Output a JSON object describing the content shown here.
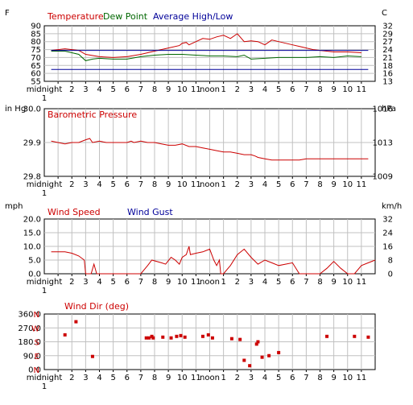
{
  "x_ticks": [
    "midnight",
    "2",
    "3",
    "4",
    "5",
    "6",
    "7",
    "8",
    "9",
    "10",
    "11",
    "noon",
    "1",
    "2",
    "3",
    "4",
    "5",
    "6",
    "7",
    "8",
    "9",
    "10",
    "11"
  ],
  "x_sub": "1",
  "colors": {
    "red": "#cc0000",
    "green": "#006600",
    "blue": "#000099",
    "grid": "#c0c0c0",
    "bg": "#ffffff"
  },
  "chart_data": [
    {
      "type": "line",
      "left_unit": "F",
      "right_unit": "C",
      "ylim": [
        55,
        90
      ],
      "left_ticks": [
        "90",
        "85",
        "80",
        "75",
        "70",
        "65",
        "60",
        "55"
      ],
      "right_ticks": [
        "32",
        "29",
        "27",
        "24",
        "21",
        "18",
        "16",
        "13"
      ],
      "legend": [
        "Temperature",
        "Dew Point",
        "Average High/Low"
      ],
      "series": [
        {
          "name": "Temperature",
          "color": "#cc0000",
          "points": [
            [
              0.5,
              74.5
            ],
            [
              1.5,
              75.5
            ],
            [
              2.5,
              74.5
            ],
            [
              3,
              72
            ],
            [
              4,
              70.5
            ],
            [
              5,
              70
            ],
            [
              6,
              70.5
            ],
            [
              7,
              72
            ],
            [
              8,
              74
            ],
            [
              9,
              76
            ],
            [
              9.8,
              77.5
            ],
            [
              10,
              79
            ],
            [
              10.3,
              79.5
            ],
            [
              10.5,
              78
            ],
            [
              11,
              80
            ],
            [
              11.5,
              82
            ],
            [
              12,
              81.5
            ],
            [
              12.5,
              83
            ],
            [
              13,
              84
            ],
            [
              13.5,
              82
            ],
            [
              14,
              85
            ],
            [
              14.5,
              80
            ],
            [
              15,
              80.5
            ],
            [
              15.5,
              80
            ],
            [
              16,
              78
            ],
            [
              16.5,
              81
            ],
            [
              17,
              80
            ],
            [
              17.5,
              79
            ],
            [
              18,
              78
            ],
            [
              18.5,
              77
            ],
            [
              19,
              76
            ],
            [
              19.5,
              75
            ],
            [
              20,
              74.5
            ],
            [
              21,
              73.5
            ],
            [
              22,
              73.5
            ],
            [
              23,
              73
            ]
          ]
        },
        {
          "name": "Dew Point",
          "color": "#006600",
          "points": [
            [
              0.5,
              74
            ],
            [
              1.5,
              74
            ],
            [
              2.5,
              72
            ],
            [
              3,
              68
            ],
            [
              3.5,
              69
            ],
            [
              4,
              69.5
            ],
            [
              5,
              69
            ],
            [
              6,
              69
            ],
            [
              7,
              70.5
            ],
            [
              8,
              71.5
            ],
            [
              9,
              72
            ],
            [
              10,
              72
            ],
            [
              11,
              71.5
            ],
            [
              12,
              71
            ],
            [
              13,
              71
            ],
            [
              14,
              70.5
            ],
            [
              14.5,
              71.5
            ],
            [
              15,
              69
            ],
            [
              16,
              69.5
            ],
            [
              17,
              70
            ],
            [
              18,
              70
            ],
            [
              19,
              70
            ],
            [
              20,
              70.5
            ],
            [
              21,
              70
            ],
            [
              22,
              71
            ],
            [
              23,
              70.5
            ]
          ]
        },
        {
          "name": "Average High",
          "color": "#000099",
          "points": [
            [
              0.5,
              74.5
            ],
            [
              23.5,
              74.5
            ]
          ]
        },
        {
          "name": "Average Low",
          "color": "#000099",
          "points": [
            [
              0.5,
              62.5
            ],
            [
              23.5,
              62.5
            ]
          ]
        }
      ]
    },
    {
      "type": "line",
      "title": "Barometric Pressure",
      "left_unit": "in Hg",
      "right_unit": "hPa",
      "ylim": [
        29.8,
        30.05
      ],
      "left_ticks": [
        "30.0",
        "29.9",
        "29.8"
      ],
      "right_ticks": [
        "1016",
        "1013",
        "1009"
      ],
      "series": [
        {
          "name": "Barometric Pressure",
          "color": "#cc0000",
          "points": [
            [
              0.5,
              29.93
            ],
            [
              1,
              29.925
            ],
            [
              1.5,
              29.92
            ],
            [
              2,
              29.925
            ],
            [
              2.5,
              29.925
            ],
            [
              3,
              29.935
            ],
            [
              3.3,
              29.94
            ],
            [
              3.5,
              29.925
            ],
            [
              4,
              29.93
            ],
            [
              4.5,
              29.925
            ],
            [
              5,
              29.925
            ],
            [
              5.5,
              29.925
            ],
            [
              6,
              29.925
            ],
            [
              6.3,
              29.93
            ],
            [
              6.5,
              29.925
            ],
            [
              7,
              29.93
            ],
            [
              7.5,
              29.925
            ],
            [
              8,
              29.925
            ],
            [
              8.5,
              29.92
            ],
            [
              9,
              29.915
            ],
            [
              9.5,
              29.915
            ],
            [
              10,
              29.92
            ],
            [
              10.5,
              29.91
            ],
            [
              11,
              29.91
            ],
            [
              11.5,
              29.905
            ],
            [
              12,
              29.9
            ],
            [
              12.5,
              29.895
            ],
            [
              13,
              29.89
            ],
            [
              13.5,
              29.89
            ],
            [
              14,
              29.885
            ],
            [
              14.5,
              29.88
            ],
            [
              15,
              29.88
            ],
            [
              15.3,
              29.875
            ],
            [
              15.5,
              29.87
            ],
            [
              16,
              29.865
            ],
            [
              16.5,
              29.86
            ],
            [
              17,
              29.86
            ],
            [
              17.5,
              29.86
            ],
            [
              18,
              29.86
            ],
            [
              18.5,
              29.86
            ],
            [
              19,
              29.865
            ],
            [
              19.5,
              29.865
            ],
            [
              20,
              29.865
            ],
            [
              20.5,
              29.865
            ],
            [
              21,
              29.865
            ],
            [
              22,
              29.865
            ],
            [
              23,
              29.865
            ],
            [
              23.5,
              29.865
            ]
          ]
        }
      ]
    },
    {
      "type": "line",
      "left_unit": "mph",
      "right_unit": "km/h",
      "ylim": [
        0,
        20
      ],
      "left_ticks": [
        "20.0",
        "15.0",
        "10.0",
        "5.0",
        "0.0"
      ],
      "right_ticks": [
        "32",
        "24",
        "16",
        "8",
        "0"
      ],
      "legend": [
        "Wind Speed",
        "Wind Gust"
      ],
      "series": [
        {
          "name": "Wind Speed",
          "color": "#cc0000",
          "points": [
            [
              0.5,
              8
            ],
            [
              1.5,
              8
            ],
            [
              2,
              7.5
            ],
            [
              2.5,
              6.5
            ],
            [
              2.9,
              5
            ],
            [
              3,
              0
            ],
            [
              3.4,
              0
            ],
            [
              3.6,
              3.5
            ],
            [
              3.8,
              0
            ],
            [
              4,
              0
            ],
            [
              5,
              0
            ],
            [
              6,
              0
            ],
            [
              7,
              0
            ],
            [
              7.5,
              3
            ],
            [
              7.8,
              5
            ],
            [
              8.5,
              4
            ],
            [
              8.8,
              3.5
            ],
            [
              9.2,
              6
            ],
            [
              9.5,
              5
            ],
            [
              9.8,
              3.5
            ],
            [
              10,
              6
            ],
            [
              10.3,
              7
            ],
            [
              10.5,
              10
            ],
            [
              10.6,
              7
            ],
            [
              11,
              7.5
            ],
            [
              11.5,
              8
            ],
            [
              12,
              9
            ],
            [
              12.3,
              5
            ],
            [
              12.5,
              3
            ],
            [
              12.7,
              5
            ],
            [
              12.8,
              0
            ],
            [
              13,
              0
            ],
            [
              13.5,
              3
            ],
            [
              14,
              7
            ],
            [
              14.5,
              9
            ],
            [
              15,
              6
            ],
            [
              15.5,
              3.5
            ],
            [
              16,
              5
            ],
            [
              16.5,
              4
            ],
            [
              17,
              3
            ],
            [
              18,
              4
            ],
            [
              18.5,
              0
            ],
            [
              19,
              0
            ],
            [
              20,
              0
            ],
            [
              20.5,
              2
            ],
            [
              21,
              4.5
            ],
            [
              21.5,
              2
            ],
            [
              22,
              0
            ],
            [
              22.5,
              0
            ],
            [
              23,
              3
            ],
            [
              23.5,
              4
            ],
            [
              24,
              5
            ]
          ]
        }
      ]
    },
    {
      "type": "scatter",
      "left_unit": "",
      "ylim": [
        0,
        360
      ],
      "left_ticks": [
        "360.0",
        "270.0",
        "180.0",
        "90.0",
        "0.0"
      ],
      "compass": [
        "N",
        "W",
        "S",
        "E",
        "N"
      ],
      "legend": [
        "Wind Dir (deg)"
      ],
      "series": [
        {
          "name": "Wind Dir (deg)",
          "color": "#cc0000",
          "points": [
            [
              1.5,
              225
            ],
            [
              2.3,
              310
            ],
            [
              3.5,
              85
            ],
            [
              7.4,
              205
            ],
            [
              7.6,
              205
            ],
            [
              7.8,
              215
            ],
            [
              7.9,
              205
            ],
            [
              8.6,
              210
            ],
            [
              9.2,
              205
            ],
            [
              9.6,
              215
            ],
            [
              9.9,
              220
            ],
            [
              10.2,
              210
            ],
            [
              11.5,
              215
            ],
            [
              11.9,
              225
            ],
            [
              12.2,
              205
            ],
            [
              13.6,
              200
            ],
            [
              14.2,
              195
            ],
            [
              14.5,
              60
            ],
            [
              14.9,
              25
            ],
            [
              15.4,
              165
            ],
            [
              15.5,
              180
            ],
            [
              15.8,
              80
            ],
            [
              16.3,
              90
            ],
            [
              17,
              110
            ],
            [
              20.5,
              215
            ],
            [
              22.5,
              215
            ],
            [
              23.5,
              210
            ]
          ]
        }
      ]
    }
  ]
}
